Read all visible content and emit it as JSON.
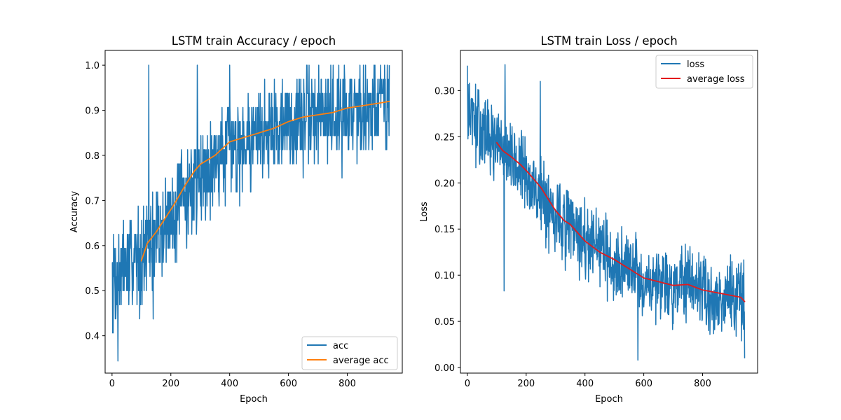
{
  "chart_data": [
    {
      "type": "line",
      "title": "LSTM train Accuracy / epoch",
      "xlabel": "Epoch",
      "ylabel": "Accuracy",
      "xlim": [
        -23.5,
        987
      ],
      "ylim": [
        0.3172,
        1.0328
      ],
      "xticks": [
        "0",
        "200",
        "400",
        "600",
        "800"
      ],
      "yticks": [
        "0.4",
        "0.5",
        "0.6",
        "0.7",
        "0.8",
        "0.9",
        "1.0"
      ],
      "grid": false,
      "legend_position": "lower-right",
      "series": [
        {
          "name": "acc",
          "color": "#1f77b4",
          "kind": "raw",
          "x_start": 0,
          "x_step": 1,
          "n": 944,
          "seed": 7,
          "trend_x": [
            0,
            20,
            60,
            100,
            150,
            200,
            250,
            300,
            350,
            400,
            450,
            500,
            550,
            600,
            650,
            700,
            750,
            800,
            850,
            900,
            944
          ],
          "trend_y": [
            0.53,
            0.54,
            0.56,
            0.58,
            0.62,
            0.66,
            0.71,
            0.76,
            0.79,
            0.82,
            0.84,
            0.85,
            0.865,
            0.875,
            0.88,
            0.89,
            0.895,
            0.9,
            0.905,
            0.915,
            0.92
          ],
          "noise": 0.09,
          "min": 0.344,
          "max": 1.0,
          "quantize": 0.03125,
          "anchors": [
            [
              0,
              0.5625
            ],
            [
              20,
              0.344
            ],
            [
              125,
              1.0
            ],
            [
              140,
              0.437
            ],
            [
              290,
              1.0
            ],
            [
              400,
              1.0
            ],
            [
              945,
              1.0
            ]
          ]
        },
        {
          "name": "average acc",
          "color": "#ff7f0e",
          "kind": "points",
          "x": [
            99,
            120,
            150,
            180,
            210,
            250,
            280,
            300,
            350,
            400,
            450,
            500,
            550,
            600,
            650,
            700,
            750,
            800,
            850,
            900,
            944
          ],
          "y": [
            0.565,
            0.605,
            0.63,
            0.66,
            0.69,
            0.735,
            0.765,
            0.78,
            0.8,
            0.83,
            0.84,
            0.85,
            0.86,
            0.875,
            0.885,
            0.89,
            0.895,
            0.905,
            0.91,
            0.915,
            0.92
          ]
        }
      ]
    },
    {
      "type": "line",
      "title": "LSTM train Loss / epoch",
      "xlabel": "Epoch",
      "ylabel": "Loss",
      "xlim": [
        -23.5,
        987
      ],
      "ylim": [
        -0.006,
        0.3435
      ],
      "xticks": [
        "0",
        "200",
        "400",
        "600",
        "800"
      ],
      "yticks": [
        "0.00",
        "0.05",
        "0.10",
        "0.15",
        "0.20",
        "0.25",
        "0.30"
      ],
      "grid": false,
      "legend_position": "top-right",
      "series": [
        {
          "name": "loss",
          "color": "#1f77b4",
          "kind": "raw",
          "x_start": 0,
          "x_step": 1,
          "n": 944,
          "seed": 13,
          "trend_x": [
            0,
            50,
            100,
            150,
            200,
            250,
            300,
            350,
            400,
            450,
            500,
            550,
            600,
            650,
            700,
            750,
            800,
            850,
            900,
            944
          ],
          "trend_y": [
            0.275,
            0.255,
            0.24,
            0.225,
            0.205,
            0.185,
            0.165,
            0.15,
            0.135,
            0.125,
            0.115,
            0.105,
            0.098,
            0.093,
            0.088,
            0.085,
            0.08,
            0.077,
            0.074,
            0.07
          ],
          "noise": 0.035,
          "min": 0.008,
          "max": 0.328,
          "quantize": 0,
          "anchors": [
            [
              0,
              0.327
            ],
            [
              128,
              0.328
            ],
            [
              248,
              0.31
            ],
            [
              125,
              0.083
            ],
            [
              580,
              0.008
            ],
            [
              945,
              0.01
            ]
          ]
        },
        {
          "name": "average loss",
          "color": "#e31a1c",
          "kind": "points",
          "x": [
            99,
            120,
            150,
            180,
            210,
            250,
            280,
            300,
            330,
            350,
            400,
            450,
            500,
            550,
            600,
            650,
            700,
            750,
            800,
            850,
            900,
            930,
            944
          ],
          "y": [
            0.244,
            0.235,
            0.228,
            0.22,
            0.21,
            0.195,
            0.18,
            0.17,
            0.159,
            0.155,
            0.137,
            0.125,
            0.117,
            0.107,
            0.097,
            0.093,
            0.089,
            0.09,
            0.084,
            0.081,
            0.078,
            0.076,
            0.071
          ]
        }
      ]
    }
  ]
}
